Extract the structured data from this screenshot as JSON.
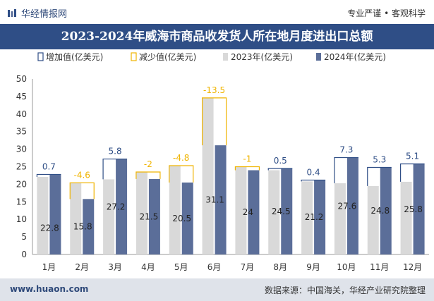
{
  "header": {
    "brand": "华经情报网",
    "tagline": "专业严谨 • 客观科学"
  },
  "title": "2023-2024年威海市商品收发货人所在地月度进出口总额",
  "footer": {
    "website": "www.huaon.com",
    "source": "数据来源：中国海关，华经产业研究院整理"
  },
  "colors": {
    "bar2023": "#d9d9d9",
    "bar2024": "#5b6e99",
    "increase": "#2f4e86",
    "decrease": "#f0b400",
    "titleBar": "#2f4e86"
  },
  "chart_data": {
    "type": "bar",
    "categories": [
      "1月",
      "2月",
      "3月",
      "4月",
      "5月",
      "6月",
      "7月",
      "8月",
      "9月",
      "10月",
      "11月",
      "12月"
    ],
    "series": [
      {
        "name": "2023年(亿美元)",
        "values": [
          22.1,
          20.4,
          21.4,
          23.5,
          25.3,
          44.6,
          25.0,
          24.0,
          20.8,
          20.3,
          19.5,
          20.7
        ]
      },
      {
        "name": "2024年(亿美元)",
        "values": [
          22.8,
          15.8,
          27.2,
          21.5,
          20.5,
          31.1,
          24,
          24.5,
          21.2,
          27.6,
          24.8,
          25.8
        ]
      }
    ],
    "changes": [
      "0.7",
      "-4.6",
      "5.8",
      "-2",
      "-4.8",
      "-13.5",
      "-1",
      "0.5",
      "0.4",
      "7.3",
      "5.3",
      "5.1"
    ],
    "legend": [
      "增加值(亿美元)",
      "减少值(亿美元)",
      "2023年(亿美元)",
      "2024年(亿美元)"
    ],
    "yticks": [
      "0",
      "5",
      "10",
      "15",
      "20",
      "25",
      "30",
      "35",
      "40",
      "45",
      "50"
    ],
    "ylim": [
      0,
      50
    ],
    "legend_position": "top",
    "grid": false
  }
}
